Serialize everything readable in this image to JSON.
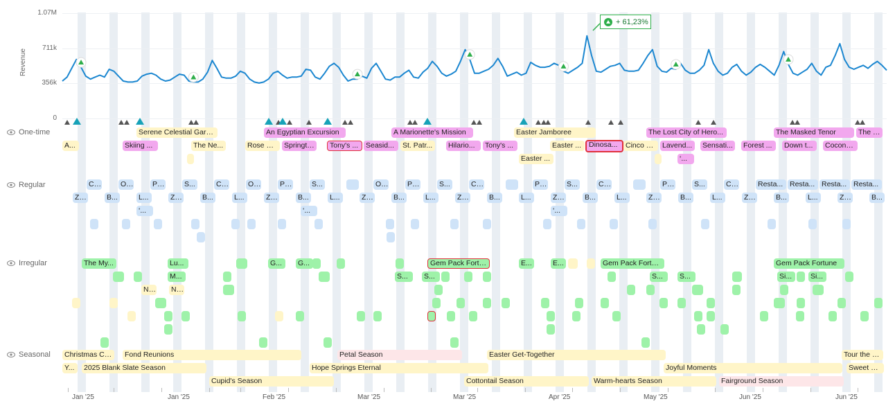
{
  "chart": {
    "ylabel": "Revenue",
    "yticks": [
      "1.07M",
      "711k",
      "356k",
      "0"
    ],
    "callout": "+ 61,23%"
  },
  "chart_data": {
    "type": "line",
    "ylabel": "Revenue",
    "ylim": [
      0,
      1070000
    ],
    "series": [
      {
        "values": [
          380000,
          420000,
          510000,
          600000,
          520000,
          430000,
          400000,
          420000,
          440000,
          420000,
          500000,
          480000,
          430000,
          380000,
          370000,
          370000,
          380000,
          430000,
          450000,
          460000,
          440000,
          400000,
          380000,
          390000,
          420000,
          450000,
          440000,
          380000,
          370000,
          370000,
          400000,
          470000,
          590000,
          510000,
          420000,
          410000,
          410000,
          430000,
          480000,
          460000,
          400000,
          370000,
          360000,
          370000,
          400000,
          460000,
          480000,
          440000,
          410000,
          420000,
          420000,
          430000,
          500000,
          490000,
          420000,
          400000,
          460000,
          530000,
          560000,
          520000,
          440000,
          380000,
          400000,
          400000,
          430000,
          410000,
          510000,
          560000,
          480000,
          400000,
          390000,
          420000,
          420000,
          460000,
          490000,
          420000,
          410000,
          470000,
          510000,
          580000,
          530000,
          460000,
          430000,
          450000,
          480000,
          580000,
          700000,
          600000,
          460000,
          460000,
          480000,
          500000,
          540000,
          610000,
          530000,
          430000,
          450000,
          470000,
          440000,
          460000,
          570000,
          540000,
          520000,
          520000,
          530000,
          560000,
          540000,
          480000,
          460000,
          490000,
          520000,
          560000,
          840000,
          640000,
          480000,
          470000,
          500000,
          530000,
          540000,
          560000,
          490000,
          480000,
          480000,
          490000,
          560000,
          640000,
          700000,
          530000,
          480000,
          470000,
          510000,
          500000,
          560000,
          490000,
          460000,
          460000,
          490000,
          540000,
          700000,
          560000,
          480000,
          440000,
          460000,
          520000,
          550000,
          480000,
          440000,
          470000,
          520000,
          550000,
          520000,
          480000,
          440000,
          540000,
          680000,
          550000,
          460000,
          440000,
          470000,
          500000,
          560000,
          480000,
          440000,
          520000,
          540000,
          640000,
          760000,
          600000,
          520000,
          500000,
          520000,
          540000,
          510000,
          550000,
          580000,
          540000,
          490000
        ]
      }
    ],
    "markers": [
      4,
      28,
      63,
      87,
      107,
      131,
      155,
      180,
      200,
      230
    ]
  },
  "rows": {
    "one_time": "One-time",
    "regular": "Regular",
    "irregular": "Irregular",
    "seasonal": "Seasonal"
  },
  "events": {
    "one_time": [
      "Serene Celestial Gard...",
      "An Egyptian Excursion",
      "A Marionette's Mission",
      "Easter Jamboree",
      "The Lost City of Hero...",
      "The Masked Tenor",
      "The Re...",
      "A...",
      "Skiing ...",
      "The Ne...",
      "Rose G...",
      "Springti...",
      "Tony's ...",
      "Seasid...",
      "St. Patr...",
      "Hilario...",
      "Tony's ...",
      "Easter ...",
      "Dinosa...",
      "Cinco d...",
      "Lavend...",
      "Sensati...",
      "Forest ...",
      "Down t...",
      "Coconu...",
      "Easter ...",
      "‘..."
    ],
    "regular_top": [
      "C...",
      "Ol...",
      "Pi...",
      "S...",
      "C...",
      "Ol...",
      "Pi...",
      "S...",
      "Ol...",
      "Pi...",
      "S...",
      "C...",
      "Pi...",
      "S...",
      "C...",
      "Pi...",
      "S...",
      "C...",
      "Resta...",
      "Resta...",
      "Resta...",
      "Resta..."
    ],
    "regular_mid": [
      "Zi...",
      "B...",
      "L...",
      "Zi...",
      "B...",
      "L...",
      "Zi...",
      "B...",
      "L...",
      "Zi...",
      "B...",
      "L...",
      "Zi...",
      "B...",
      "L...",
      "Zi...",
      "B...",
      "L...",
      "Zi...",
      "B...",
      "L...",
      "Zi...",
      "B...",
      "L...",
      "Zi...",
      "B..."
    ],
    "regular_low": [
      "‘...",
      "‘...",
      "‘..."
    ],
    "irregular_top": [
      "The My...",
      "Lu...",
      "G...",
      "G...",
      "Gem Pack Fortu...",
      "E...",
      "E...",
      "Gem Pack Fortune",
      "Gem Pack Fortune"
    ],
    "irregular_mid": [
      "M...",
      "S...",
      "S...",
      "S...",
      "S...",
      "Si...",
      "Si..."
    ],
    "irregular_low": [
      "N...",
      "N..."
    ],
    "seasonal": [
      "Christmas Co...",
      "Fond Reunions",
      "Petal Season",
      "Easter Get-Together",
      "Tour the Cos...",
      "Y...",
      "2025 Blank Slate Season",
      "Hope Springs Eternal",
      "Joyful Moments",
      "Sweet & Ta...",
      "Cupid's Season",
      "Cottontail Season",
      "Warm-hearts Season",
      "Fairground Season"
    ]
  },
  "xaxis": [
    "Jan '25",
    "Jan '25",
    "Feb '25",
    "Mar '25",
    "Mar '25",
    "Apr '25",
    "May '25",
    "Jun '25",
    "Jun '25"
  ],
  "colors": {
    "line": "#1a86d0",
    "marker_green": "#2eae4a",
    "marker_teal": "#17a2b8",
    "one_time": "#f2a8ee",
    "regular": "#cfe3f8",
    "irregular": "#9ef2a9",
    "seasonal": "#fff5c8",
    "selected_border": "#e0303a"
  },
  "icons": [
    "eye-icon",
    "triangle-up-icon"
  ]
}
